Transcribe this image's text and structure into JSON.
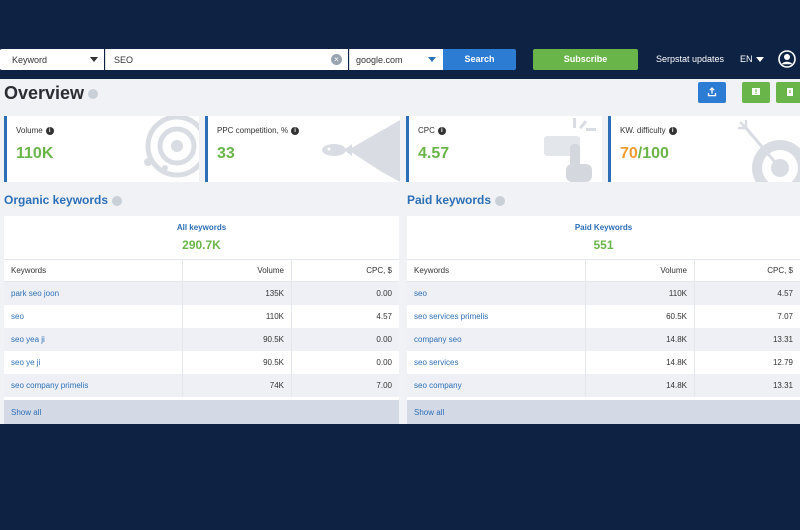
{
  "search": {
    "type_value": "Keyword",
    "query": "SEO",
    "database": "google.com",
    "search_label": "Search"
  },
  "header": {
    "subscribe_label": "Subscribe",
    "updates_label": "Serpstat updates",
    "lang": "EN"
  },
  "page": {
    "title": "Overview"
  },
  "toolbar": {
    "export_icon": "export-icon",
    "button2_icon": "notice-icon",
    "button3_icon": "book-icon",
    "export_color": "#2d7cd4",
    "green_color": "#6ab54a"
  },
  "cards": [
    {
      "label": "Volume",
      "value": "110K"
    },
    {
      "label": "PPC competition, %",
      "value": "33"
    },
    {
      "label": "CPC",
      "value": "4.57"
    },
    {
      "label": "KW. difficulty",
      "value": "70",
      "value_suffix": "/100",
      "value_color": "#f39c32"
    }
  ],
  "organic": {
    "title": "Organic keywords",
    "summary_label": "All keywords",
    "summary_value": "290.7K",
    "columns": [
      "Keywords",
      "Volume",
      "CPC, $"
    ],
    "rows": [
      {
        "keyword": "park seo joon",
        "volume": "135K",
        "cpc": "0.00"
      },
      {
        "keyword": "seo",
        "volume": "110K",
        "cpc": "4.57"
      },
      {
        "keyword": "seo yea ji",
        "volume": "90.5K",
        "cpc": "0.00"
      },
      {
        "keyword": "seo ye ji",
        "volume": "90.5K",
        "cpc": "0.00"
      },
      {
        "keyword": "seo company primelis",
        "volume": "74K",
        "cpc": "7.00"
      }
    ],
    "show_all": "Show all"
  },
  "paid": {
    "title": "Paid keywords",
    "summary_label": "Paid Keywords",
    "summary_value": "551",
    "columns": [
      "Keywords",
      "Volume",
      "CPC, $"
    ],
    "rows": [
      {
        "keyword": "seo",
        "volume": "110K",
        "cpc": "4.57"
      },
      {
        "keyword": "seo services primelis",
        "volume": "60.5K",
        "cpc": "7.07"
      },
      {
        "keyword": "company seo",
        "volume": "14.8K",
        "cpc": "13.31"
      },
      {
        "keyword": "seo services",
        "volume": "14.8K",
        "cpc": "12.79"
      },
      {
        "keyword": "seo company",
        "volume": "14.8K",
        "cpc": "13.31"
      }
    ],
    "show_all": "Show all"
  }
}
